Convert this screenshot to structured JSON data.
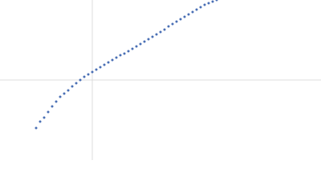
{
  "chart_data": {
    "type": "scatter",
    "x": [
      -70,
      -65,
      -60,
      -55,
      -50,
      -45,
      -40,
      -35,
      -30,
      -25,
      -20,
      -15,
      -10,
      -5,
      0,
      5,
      10,
      15,
      20,
      25,
      30,
      35,
      40,
      45,
      50,
      55,
      60,
      65,
      70,
      75,
      80,
      85,
      90,
      95,
      100,
      105,
      110,
      115,
      120,
      125,
      130,
      135,
      140,
      145,
      150,
      155
    ],
    "values": [
      -60,
      -52,
      -47,
      -40,
      -33,
      -27,
      -21,
      -17,
      -13,
      -8,
      -4,
      0,
      4,
      7,
      10,
      13,
      16,
      19,
      22,
      25,
      28,
      31,
      33,
      36,
      39,
      42,
      45,
      48,
      51,
      54,
      57,
      60,
      63,
      67,
      70,
      73,
      76,
      79,
      82,
      85,
      88,
      91,
      94,
      96,
      98,
      100
    ],
    "color": "#4a6fb5",
    "xlim": [
      -115,
      285
    ],
    "ylim": [
      -100,
      100
    ],
    "zero_lines": true
  }
}
